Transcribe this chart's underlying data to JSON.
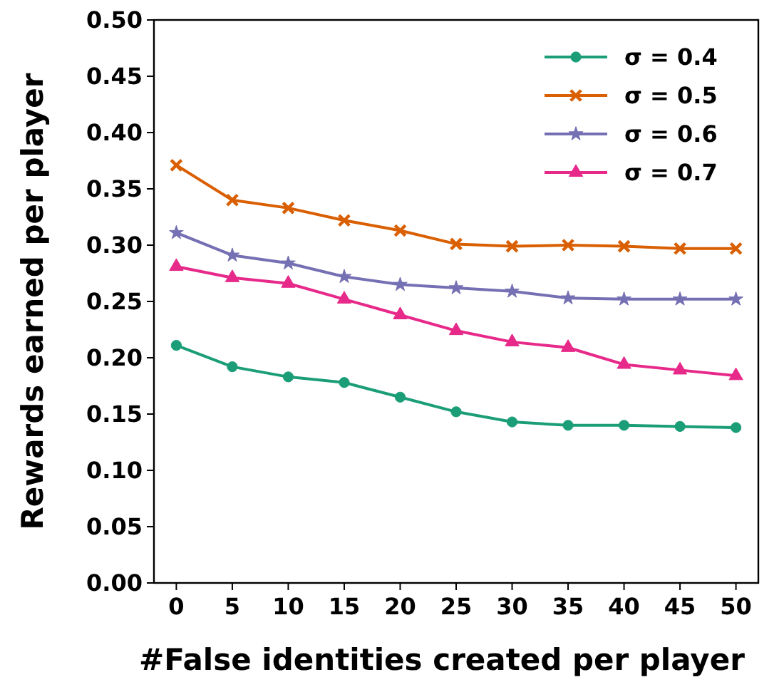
{
  "chart_data": {
    "type": "line",
    "xlabel": "#False identities created per player",
    "ylabel": "Rewards earned per player",
    "x": [
      0,
      5,
      10,
      15,
      20,
      25,
      30,
      35,
      40,
      45,
      50
    ],
    "xlim": [
      -2,
      52
    ],
    "xticks": [
      0,
      5,
      10,
      15,
      20,
      25,
      30,
      35,
      40,
      45,
      50
    ],
    "ylim": [
      0,
      0.5
    ],
    "yticks": [
      {
        "value": 0,
        "label": "0.00"
      },
      {
        "value": 0.05,
        "label": "0.05"
      },
      {
        "value": 0.1,
        "label": "0.10"
      },
      {
        "value": 0.15,
        "label": "0.15"
      },
      {
        "value": 0.2,
        "label": "0.20"
      },
      {
        "value": 0.25,
        "label": "0.25"
      },
      {
        "value": 0.3,
        "label": "0.30"
      },
      {
        "value": 0.35,
        "label": "0.35"
      },
      {
        "value": 0.4,
        "label": "0.40"
      },
      {
        "value": 0.45,
        "label": "0.45"
      },
      {
        "value": 0.5,
        "label": "0.50"
      }
    ],
    "legend": "top right",
    "grid": false,
    "line_style": "solid",
    "series": [
      {
        "name": "σ = 0.4",
        "color": "#1b9e77",
        "marker": "circle",
        "values": [
          0.211,
          0.192,
          0.183,
          0.178,
          0.165,
          0.152,
          0.143,
          0.14,
          0.14,
          0.139,
          0.138
        ]
      },
      {
        "name": "σ = 0.5",
        "color": "#d95f02",
        "marker": "cross",
        "values": [
          0.371,
          0.34,
          0.333,
          0.322,
          0.313,
          0.301,
          0.299,
          0.3,
          0.299,
          0.297,
          0.297
        ]
      },
      {
        "name": "σ = 0.6",
        "color": "#7570b3",
        "marker": "star",
        "values": [
          0.311,
          0.291,
          0.284,
          0.272,
          0.265,
          0.262,
          0.259,
          0.253,
          0.252,
          0.252,
          0.252
        ]
      },
      {
        "name": "σ = 0.7",
        "color": "#e7298a",
        "marker": "triangle",
        "values": [
          0.281,
          0.271,
          0.266,
          0.252,
          0.238,
          0.224,
          0.214,
          0.209,
          0.194,
          0.189,
          0.184
        ]
      }
    ]
  }
}
